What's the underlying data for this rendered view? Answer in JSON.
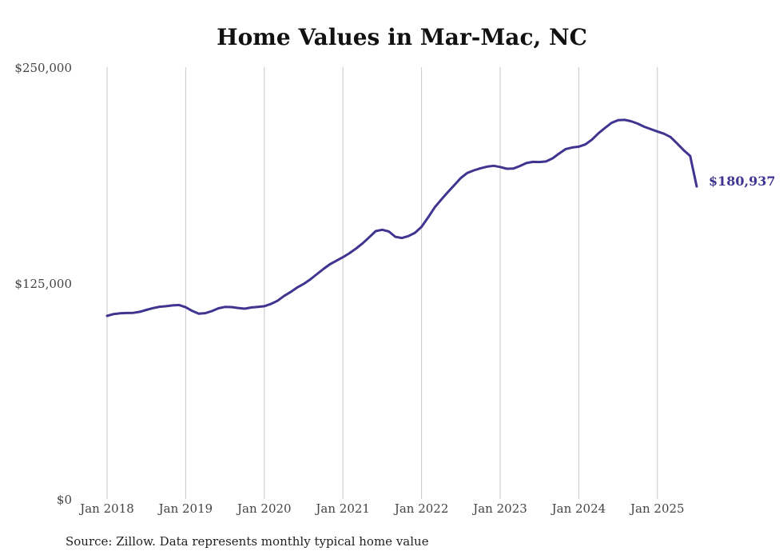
{
  "chart_data": {
    "type": "line",
    "title": "Home Values in Mar-Mac, NC",
    "xlabel": "",
    "ylabel": "",
    "ylim": [
      0,
      250000
    ],
    "yticks": [
      0,
      125000,
      250000
    ],
    "ytick_labels": [
      "$0",
      "$125,000",
      "$250,000"
    ],
    "xlim": [
      "2018-01",
      "2025-07"
    ],
    "xtick_labels": [
      "Jan 2018",
      "Jan 2019",
      "Jan 2020",
      "Jan 2021",
      "Jan 2022",
      "Jan 2023",
      "Jan 2024",
      "Jan 2025"
    ],
    "grid": "vertical",
    "line_color": "#3f3590",
    "end_label": "$180,937",
    "source": "Source: Zillow. Data represents monthly typical home value",
    "series": [
      {
        "x": [
          "2018-01",
          "2018-02",
          "2018-03",
          "2018-04",
          "2018-05",
          "2018-06",
          "2018-07",
          "2018-08",
          "2018-09",
          "2018-10",
          "2018-11",
          "2018-12",
          "2019-01",
          "2019-02",
          "2019-03",
          "2019-04",
          "2019-05",
          "2019-06",
          "2019-07",
          "2019-08",
          "2019-09",
          "2019-10",
          "2019-11",
          "2019-12",
          "2020-01",
          "2020-02",
          "2020-03",
          "2020-04",
          "2020-05",
          "2020-06",
          "2020-07",
          "2020-08",
          "2020-09",
          "2020-10",
          "2020-11",
          "2020-12",
          "2021-01",
          "2021-02",
          "2021-03",
          "2021-04",
          "2021-05",
          "2021-06",
          "2021-07",
          "2021-08",
          "2021-09",
          "2021-10",
          "2021-11",
          "2021-12",
          "2022-01",
          "2022-02",
          "2022-03",
          "2022-04",
          "2022-05",
          "2022-06",
          "2022-07",
          "2022-08",
          "2022-09",
          "2022-10",
          "2022-11",
          "2022-12",
          "2023-01",
          "2023-02",
          "2023-03",
          "2023-04",
          "2023-05",
          "2023-06",
          "2023-07",
          "2023-08",
          "2023-09",
          "2023-10",
          "2023-11",
          "2023-12",
          "2024-01",
          "2024-02",
          "2024-03",
          "2024-04",
          "2024-05",
          "2024-06",
          "2024-07",
          "2024-08",
          "2024-09",
          "2024-10",
          "2024-11",
          "2024-12",
          "2025-01",
          "2025-02",
          "2025-03",
          "2025-04",
          "2025-05",
          "2025-06",
          "2025-07"
        ],
        "values": [
          106000,
          107100,
          107500,
          107700,
          107800,
          108400,
          109500,
          110500,
          111300,
          111600,
          112100,
          112300,
          111000,
          108900,
          107300,
          107600,
          108800,
          110400,
          111200,
          111100,
          110600,
          110200,
          110900,
          111200,
          111600,
          112900,
          114700,
          117500,
          119800,
          122400,
          124500,
          127100,
          130100,
          133100,
          135900,
          137900,
          140000,
          142300,
          145000,
          148000,
          151500,
          155100,
          155900,
          154900,
          151800,
          151100,
          152200,
          154100,
          157600,
          163000,
          168800,
          173300,
          177600,
          181700,
          185900,
          188800,
          190300,
          191500,
          192400,
          192900,
          192200,
          191200,
          191300,
          192800,
          194500,
          195200,
          195100,
          195400,
          197200,
          200000,
          202600,
          203500,
          204000,
          205300,
          208000,
          211700,
          214800,
          217800,
          219300,
          219500,
          218700,
          217300,
          215500,
          214100,
          212800,
          211500,
          209600,
          205900,
          202000,
          198600,
          180937
        ]
      }
    ]
  }
}
